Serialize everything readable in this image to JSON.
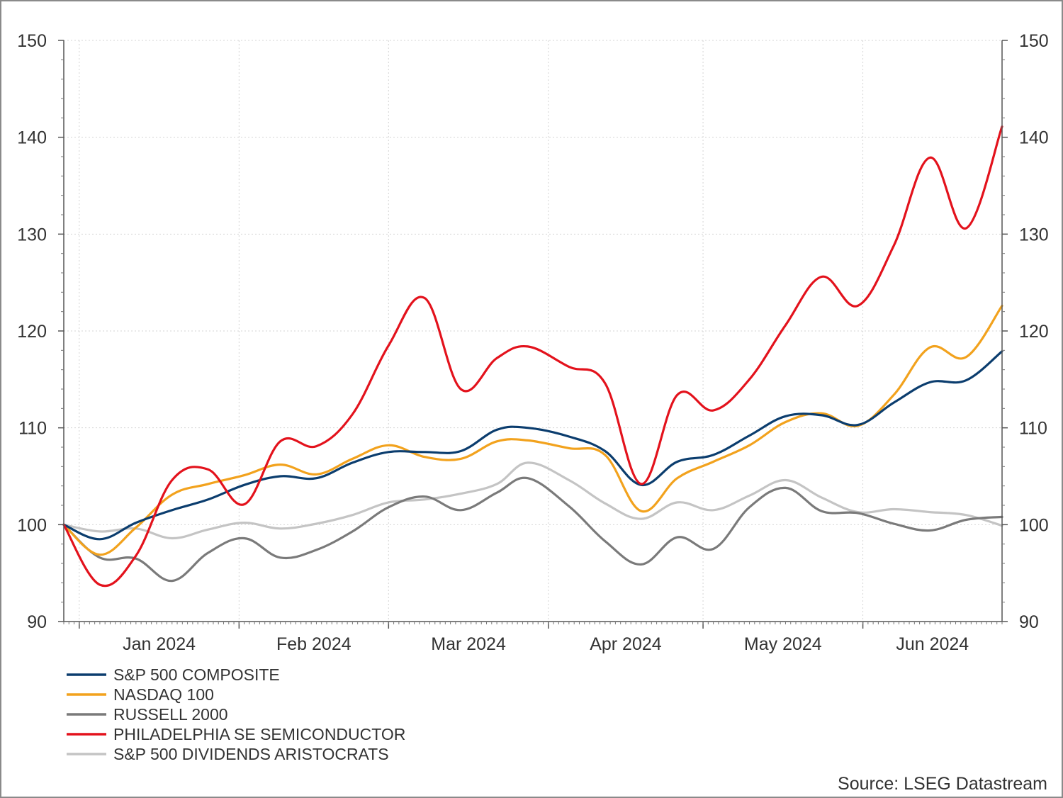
{
  "chart_data": {
    "type": "line",
    "title": "",
    "xlabel": "",
    "ylabel": "",
    "ylim": [
      90,
      150
    ],
    "y_ticks": [
      90,
      100,
      110,
      120,
      130,
      140,
      150
    ],
    "y_axis_both_sides": true,
    "x_range": [
      "2023-12-29",
      "2024-06-28"
    ],
    "month_ticks": [
      "2024-01-01",
      "2024-02-01",
      "2024-03-01",
      "2024-04-01",
      "2024-05-01",
      "2024-06-01"
    ],
    "month_labels": [
      "Jan 2024",
      "Feb 2024",
      "Mar 2024",
      "Apr 2024",
      "May 2024",
      "Jun 2024"
    ],
    "grid": true,
    "legend_position": "bottom-left",
    "source": "Source: LSEG Datastream",
    "series": [
      {
        "name": "S&P 500 DIVIDENDS ARISTOCRATS",
        "color": "#c4c4c4",
        "points": [
          [
            "2023-12-29",
            100
          ],
          [
            "2024-01-05",
            99.3
          ],
          [
            "2024-01-12",
            99.6
          ],
          [
            "2024-01-19",
            98.6
          ],
          [
            "2024-01-26",
            99.5
          ],
          [
            "2024-02-02",
            100.2
          ],
          [
            "2024-02-09",
            99.6
          ],
          [
            "2024-02-16",
            100.1
          ],
          [
            "2024-02-23",
            101
          ],
          [
            "2024-03-01",
            102.3
          ],
          [
            "2024-03-08",
            102.6
          ],
          [
            "2024-03-15",
            103.2
          ],
          [
            "2024-03-22",
            104.2
          ],
          [
            "2024-03-28",
            106.4
          ],
          [
            "2024-04-05",
            104.6
          ],
          [
            "2024-04-12",
            102.2
          ],
          [
            "2024-04-19",
            100.6
          ],
          [
            "2024-04-26",
            102.3
          ],
          [
            "2024-05-03",
            101.5
          ],
          [
            "2024-05-10",
            103
          ],
          [
            "2024-05-17",
            104.6
          ],
          [
            "2024-05-24",
            102.8
          ],
          [
            "2024-05-31",
            101.3
          ],
          [
            "2024-06-07",
            101.6
          ],
          [
            "2024-06-14",
            101.3
          ],
          [
            "2024-06-21",
            101
          ],
          [
            "2024-06-28",
            99.9
          ]
        ]
      },
      {
        "name": "RUSSELL 2000",
        "color": "#7a7a7a",
        "points": [
          [
            "2023-12-29",
            100
          ],
          [
            "2024-01-05",
            96.6
          ],
          [
            "2024-01-12",
            96.5
          ],
          [
            "2024-01-19",
            94.2
          ],
          [
            "2024-01-26",
            97.1
          ],
          [
            "2024-02-02",
            98.6
          ],
          [
            "2024-02-09",
            96.6
          ],
          [
            "2024-02-16",
            97.4
          ],
          [
            "2024-02-23",
            99.3
          ],
          [
            "2024-03-01",
            101.8
          ],
          [
            "2024-03-08",
            102.9
          ],
          [
            "2024-03-15",
            101.5
          ],
          [
            "2024-03-22",
            103.3
          ],
          [
            "2024-03-28",
            104.8
          ],
          [
            "2024-04-05",
            101.9
          ],
          [
            "2024-04-12",
            98.3
          ],
          [
            "2024-04-19",
            95.9
          ],
          [
            "2024-04-26",
            98.7
          ],
          [
            "2024-05-03",
            97.5
          ],
          [
            "2024-05-10",
            101.8
          ],
          [
            "2024-05-17",
            103.8
          ],
          [
            "2024-05-24",
            101.4
          ],
          [
            "2024-05-31",
            101.2
          ],
          [
            "2024-06-07",
            100.1
          ],
          [
            "2024-06-14",
            99.4
          ],
          [
            "2024-06-21",
            100.5
          ],
          [
            "2024-06-28",
            100.8
          ]
        ]
      },
      {
        "name": "NASDAQ 100",
        "color": "#f2a21d",
        "points": [
          [
            "2023-12-29",
            100
          ],
          [
            "2024-01-05",
            96.9
          ],
          [
            "2024-01-12",
            99.7
          ],
          [
            "2024-01-19",
            103.1
          ],
          [
            "2024-01-26",
            104.2
          ],
          [
            "2024-02-02",
            105.1
          ],
          [
            "2024-02-09",
            106.2
          ],
          [
            "2024-02-16",
            105.2
          ],
          [
            "2024-02-23",
            106.8
          ],
          [
            "2024-03-01",
            108.2
          ],
          [
            "2024-03-08",
            107
          ],
          [
            "2024-03-15",
            106.8
          ],
          [
            "2024-03-22",
            108.6
          ],
          [
            "2024-03-28",
            108.7
          ],
          [
            "2024-04-05",
            107.9
          ],
          [
            "2024-04-12",
            107.2
          ],
          [
            "2024-04-19",
            101.4
          ],
          [
            "2024-04-26",
            104.8
          ],
          [
            "2024-05-03",
            106.5
          ],
          [
            "2024-05-10",
            108.2
          ],
          [
            "2024-05-17",
            110.6
          ],
          [
            "2024-05-24",
            111.5
          ],
          [
            "2024-05-31",
            110.2
          ],
          [
            "2024-06-07",
            113.4
          ],
          [
            "2024-06-14",
            118.3
          ],
          [
            "2024-06-21",
            117.3
          ],
          [
            "2024-06-28",
            122.6
          ]
        ]
      },
      {
        "name": "S&P 500 COMPOSITE",
        "color": "#0b3d6e",
        "points": [
          [
            "2023-12-29",
            100
          ],
          [
            "2024-01-05",
            98.5
          ],
          [
            "2024-01-12",
            100.2
          ],
          [
            "2024-01-19",
            101.5
          ],
          [
            "2024-01-26",
            102.6
          ],
          [
            "2024-02-02",
            104.1
          ],
          [
            "2024-02-09",
            105
          ],
          [
            "2024-02-16",
            104.8
          ],
          [
            "2024-02-23",
            106.4
          ],
          [
            "2024-03-01",
            107.5
          ],
          [
            "2024-03-08",
            107.5
          ],
          [
            "2024-03-15",
            107.6
          ],
          [
            "2024-03-22",
            109.8
          ],
          [
            "2024-03-28",
            110
          ],
          [
            "2024-04-05",
            109.1
          ],
          [
            "2024-04-12",
            107.6
          ],
          [
            "2024-04-19",
            104.1
          ],
          [
            "2024-04-26",
            106.5
          ],
          [
            "2024-05-03",
            107.2
          ],
          [
            "2024-05-10",
            109.2
          ],
          [
            "2024-05-17",
            111.2
          ],
          [
            "2024-05-24",
            111.3
          ],
          [
            "2024-05-31",
            110.3
          ],
          [
            "2024-06-07",
            112.6
          ],
          [
            "2024-06-14",
            114.7
          ],
          [
            "2024-06-21",
            114.9
          ],
          [
            "2024-06-28",
            117.9
          ]
        ]
      },
      {
        "name": "PHILADELPHIA SE SEMICONDUCTOR",
        "color": "#e3121c",
        "points": [
          [
            "2023-12-29",
            100
          ],
          [
            "2024-01-05",
            93.8
          ],
          [
            "2024-01-12",
            96.8
          ],
          [
            "2024-01-19",
            104.6
          ],
          [
            "2024-01-26",
            105.7
          ],
          [
            "2024-02-02",
            102.1
          ],
          [
            "2024-02-09",
            108.6
          ],
          [
            "2024-02-16",
            108.1
          ],
          [
            "2024-02-23",
            111.4
          ],
          [
            "2024-03-01",
            118.5
          ],
          [
            "2024-03-08",
            123.4
          ],
          [
            "2024-03-15",
            114
          ],
          [
            "2024-03-22",
            117.2
          ],
          [
            "2024-03-28",
            118.4
          ],
          [
            "2024-04-05",
            116.3
          ],
          [
            "2024-04-12",
            114.6
          ],
          [
            "2024-04-19",
            104.2
          ],
          [
            "2024-04-26",
            113.4
          ],
          [
            "2024-05-03",
            111.8
          ],
          [
            "2024-05-10",
            115
          ],
          [
            "2024-05-17",
            120.6
          ],
          [
            "2024-05-24",
            125.6
          ],
          [
            "2024-05-31",
            122.6
          ],
          [
            "2024-06-07",
            128.8
          ],
          [
            "2024-06-14",
            137.9
          ],
          [
            "2024-06-21",
            130.6
          ],
          [
            "2024-06-28",
            141.1
          ]
        ]
      }
    ],
    "legend": [
      {
        "label": "S&P 500 COMPOSITE",
        "color": "#0b3d6e"
      },
      {
        "label": "NASDAQ 100",
        "color": "#f2a21d"
      },
      {
        "label": "RUSSELL 2000",
        "color": "#7a7a7a"
      },
      {
        "label": "PHILADELPHIA SE SEMICONDUCTOR",
        "color": "#e3121c"
      },
      {
        "label": "S&P 500 DIVIDENDS ARISTOCRATS",
        "color": "#c4c4c4"
      }
    ]
  }
}
